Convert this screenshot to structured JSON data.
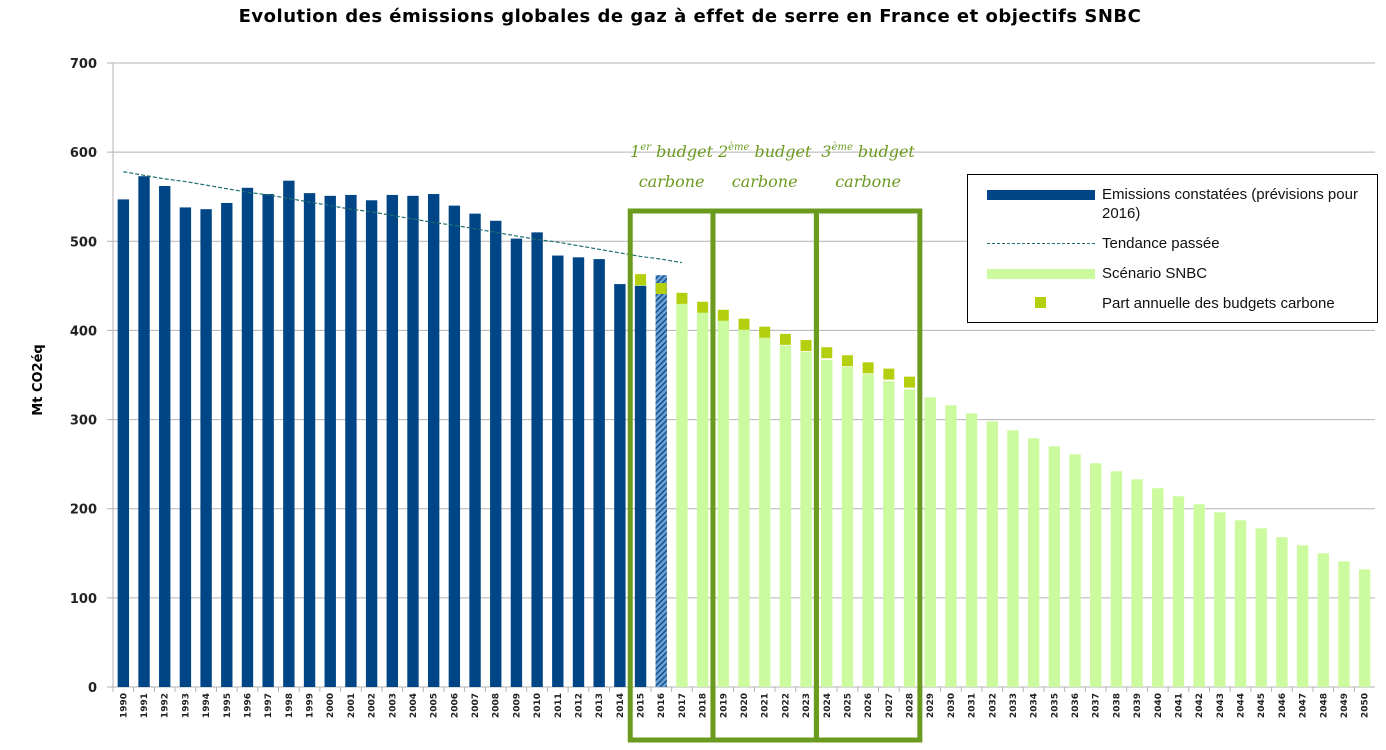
{
  "chart_data": {
    "type": "bar",
    "title": "Evolution des émissions globales de gaz à effet de serre en France et objectifs SNBC",
    "y_label": "Mt CO2éq",
    "categories": [
      "1990",
      "1991",
      "1992",
      "1993",
      "1994",
      "1995",
      "1996",
      "1997",
      "1998",
      "1999",
      "2000",
      "2001",
      "2002",
      "2003",
      "2004",
      "2005",
      "2006",
      "2007",
      "2008",
      "2009",
      "2010",
      "2011",
      "2012",
      "2013",
      "2014",
      "2015",
      "2016",
      "2017",
      "2018",
      "2019",
      "2020",
      "2021",
      "2022",
      "2023",
      "2024",
      "2025",
      "2026",
      "2027",
      "2028",
      "2029",
      "2030",
      "2031",
      "2032",
      "2033",
      "2034",
      "2035",
      "2036",
      "2037",
      "2038",
      "2039",
      "2040",
      "2041",
      "2042",
      "2043",
      "2044",
      "2045",
      "2046",
      "2047",
      "2048",
      "2049",
      "2050"
    ],
    "ylim": [
      0,
      700
    ],
    "yticks": [
      0,
      100,
      200,
      300,
      400,
      500,
      600,
      700
    ],
    "grid": true,
    "series": [
      {
        "name": "Scénario SNBC",
        "type": "bar",
        "color": "#ccfa9e",
        "values": [
          null,
          null,
          null,
          null,
          null,
          null,
          null,
          null,
          null,
          null,
          null,
          null,
          null,
          null,
          null,
          null,
          null,
          null,
          null,
          null,
          null,
          null,
          null,
          null,
          null,
          455,
          443,
          432,
          421,
          411,
          401,
          392,
          383,
          376,
          367,
          359,
          351,
          343,
          334,
          325,
          316,
          307,
          298,
          288,
          279,
          270,
          261,
          251,
          242,
          233,
          223,
          214,
          205,
          196,
          187,
          178,
          168,
          159,
          150,
          141,
          132
        ]
      },
      {
        "name": "Emissions constatées (prévisions pour 2016)",
        "type": "bar",
        "color": "#004586",
        "hatched": [
          "2016"
        ],
        "values": [
          547,
          573,
          562,
          538,
          536,
          543,
          560,
          553,
          568,
          554,
          551,
          552,
          546,
          552,
          551,
          553,
          540,
          531,
          523,
          503,
          510,
          484,
          482,
          480,
          452,
          450,
          462,
          null,
          null,
          null,
          null,
          null,
          null,
          null,
          null,
          null,
          null,
          null,
          null,
          null,
          null,
          null,
          null,
          null,
          null,
          null,
          null,
          null,
          null,
          null,
          null,
          null,
          null,
          null,
          null,
          null,
          null,
          null,
          null,
          null,
          null
        ]
      },
      {
        "name": "Tendance passée",
        "type": "line",
        "color": "#1f6f6f",
        "values": [
          578,
          574,
          570,
          567,
          563,
          559,
          555,
          552,
          548,
          544,
          540,
          536,
          533,
          529,
          525,
          521,
          518,
          514,
          510,
          506,
          502,
          499,
          495,
          491,
          487,
          483,
          480,
          476,
          null,
          null,
          null,
          null,
          null,
          null,
          null,
          null,
          null,
          null,
          null,
          null,
          null,
          null,
          null,
          null,
          null,
          null,
          null,
          null,
          null,
          null,
          null,
          null,
          null,
          null,
          null,
          null,
          null,
          null,
          null,
          null,
          null
        ]
      },
      {
        "name": "Part annuelle des budgets carbone",
        "type": "scatter",
        "color": "#b4cf0e",
        "values": [
          null,
          null,
          null,
          null,
          null,
          null,
          null,
          null,
          null,
          null,
          null,
          null,
          null,
          null,
          null,
          null,
          null,
          null,
          null,
          null,
          null,
          null,
          null,
          null,
          null,
          457,
          447,
          436,
          426,
          417,
          407,
          398,
          390,
          383,
          375,
          366,
          358,
          351,
          342,
          null,
          null,
          null,
          null,
          null,
          null,
          null,
          null,
          null,
          null,
          null,
          null,
          null,
          null,
          null,
          null,
          null,
          null,
          null,
          null,
          null,
          null
        ]
      }
    ],
    "annotations": [
      {
        "num": "1",
        "sup": "er",
        "word": "budget",
        "line2": "carbone",
        "from": "2015",
        "to": "2018",
        "color": "#6a9a1e"
      },
      {
        "num": "2",
        "sup": "ème",
        "word": "budget",
        "line2": "carbone",
        "from": "2019",
        "to": "2023",
        "color": "#6a9a1e"
      },
      {
        "num": "3",
        "sup": "ème",
        "word": "budget",
        "line2": "carbone",
        "from": "2024",
        "to": "2028",
        "color": "#6a9a1e"
      }
    ]
  }
}
